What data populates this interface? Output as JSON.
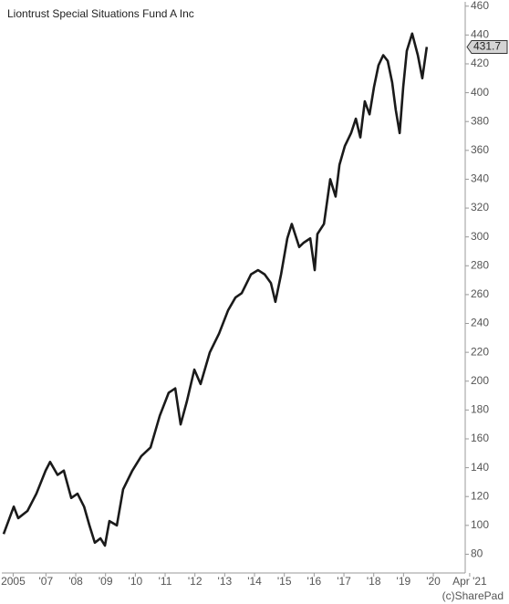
{
  "chart_data": {
    "type": "line",
    "title": "Liontrust Special Situations Fund A Inc",
    "x": [
      2005.58,
      2005.92,
      2006.07,
      2006.38,
      2006.68,
      2006.99,
      2007.14,
      2007.39,
      2007.6,
      2007.85,
      2008.06,
      2008.28,
      2008.46,
      2008.64,
      2008.83,
      2008.98,
      2009.13,
      2009.38,
      2009.59,
      2009.9,
      2010.2,
      2010.51,
      2010.82,
      2011.12,
      2011.34,
      2011.52,
      2011.73,
      2011.98,
      2012.19,
      2012.5,
      2012.81,
      2013.11,
      2013.36,
      2013.57,
      2013.88,
      2014.12,
      2014.34,
      2014.55,
      2014.7,
      2014.89,
      2015.1,
      2015.25,
      2015.5,
      2015.65,
      2015.87,
      2016.02,
      2016.11,
      2016.33,
      2016.54,
      2016.72,
      2016.85,
      2017.03,
      2017.24,
      2017.4,
      2017.55,
      2017.7,
      2017.86,
      2018.01,
      2018.16,
      2018.32,
      2018.47,
      2018.62,
      2018.74,
      2018.87,
      2018.99,
      2019.11,
      2019.29,
      2019.48,
      2019.63,
      2019.78
    ],
    "series": [
      {
        "name": "Liontrust Special Situations Fund A Inc",
        "color": "#1a1a1a",
        "values": [
          94,
          113,
          105,
          110,
          122,
          138,
          144,
          135,
          138,
          119,
          122,
          113,
          100,
          88,
          91,
          86,
          103,
          100,
          125,
          138,
          148,
          154,
          176,
          192,
          195,
          170,
          186,
          208,
          198,
          220,
          233,
          249,
          258,
          261,
          274,
          277,
          274,
          268,
          255,
          274,
          299,
          309,
          293,
          296,
          299,
          277,
          302,
          309,
          340,
          328,
          350,
          363,
          372,
          382,
          369,
          394,
          385,
          404,
          419,
          426,
          422,
          407,
          388,
          372,
          404,
          429,
          441,
          426,
          410,
          431.7
        ]
      }
    ],
    "current_value": 431.7,
    "xlim": [
      2005.52,
      2021.07
    ],
    "xticks": [
      {
        "value": 2005.9,
        "label": "2005"
      },
      {
        "value": 2007,
        "label": "'07"
      },
      {
        "value": 2008,
        "label": "'08"
      },
      {
        "value": 2009,
        "label": "'09"
      },
      {
        "value": 2010,
        "label": "'10"
      },
      {
        "value": 2011,
        "label": "'11"
      },
      {
        "value": 2012,
        "label": "'12"
      },
      {
        "value": 2013,
        "label": "'13"
      },
      {
        "value": 2014,
        "label": "'14"
      },
      {
        "value": 2015,
        "label": "'15"
      },
      {
        "value": 2016,
        "label": "'16"
      },
      {
        "value": 2017,
        "label": "'17"
      },
      {
        "value": 2018,
        "label": "'18"
      },
      {
        "value": 2019,
        "label": "'19"
      },
      {
        "value": 2020,
        "label": "'20"
      },
      {
        "value": 2021.22,
        "label": "Apr '21"
      }
    ],
    "ylim": [
      67,
      463
    ],
    "yticks": [
      80,
      100,
      120,
      140,
      160,
      180,
      200,
      220,
      240,
      260,
      280,
      300,
      320,
      340,
      360,
      380,
      400,
      420,
      440,
      460
    ],
    "grid": false,
    "credit": "(c)SharePad"
  }
}
